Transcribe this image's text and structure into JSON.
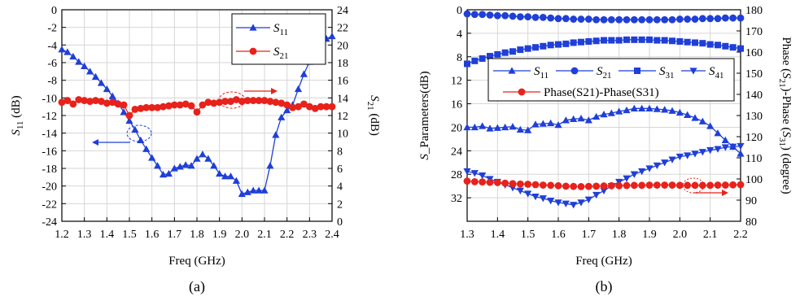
{
  "chart_data": [
    {
      "id": "a",
      "type": "line",
      "panel_label": "(a)",
      "xlabel": "Freq (GHz)",
      "ylabel_left": "S11 (dB)",
      "ylabel_right": "S 21 (dB)",
      "xlim": [
        1.2,
        2.4
      ],
      "ylim_left": [
        -24,
        0
      ],
      "ylim_right": [
        0,
        24
      ],
      "xticks": [
        "1.2",
        "1.3",
        "1.4",
        "1.5",
        "1.6",
        "1.7",
        "1.8",
        "1.9",
        "2.0",
        "2.1",
        "2.2",
        "2.3",
        "2.4"
      ],
      "yticks_left": [
        "0",
        "-2",
        "-4",
        "-6",
        "-8",
        "-10",
        "-12",
        "-14",
        "-16",
        "-18",
        "-20",
        "-22",
        "-24"
      ],
      "yticks_right": [
        "24",
        "22",
        "20",
        "18",
        "16",
        "14",
        "12",
        "10",
        "8",
        "6",
        "4",
        "2",
        "0"
      ],
      "grid": true,
      "legend": "top-right",
      "series": [
        {
          "name": "S11",
          "sub": "11",
          "color": "#1f3fd8",
          "marker": "triangle-up",
          "axis": "left",
          "x": [
            1.2,
            1.225,
            1.25,
            1.275,
            1.3,
            1.325,
            1.35,
            1.375,
            1.4,
            1.425,
            1.45,
            1.475,
            1.5,
            1.525,
            1.55,
            1.575,
            1.6,
            1.625,
            1.65,
            1.675,
            1.7,
            1.725,
            1.75,
            1.775,
            1.8,
            1.825,
            1.85,
            1.875,
            1.9,
            1.925,
            1.95,
            1.975,
            2.0,
            2.025,
            2.05,
            2.075,
            2.1,
            2.125,
            2.15,
            2.175,
            2.2,
            2.225,
            2.25,
            2.275,
            2.3,
            2.325,
            2.35,
            2.375,
            2.4
          ],
          "values": [
            -4.5,
            -4.8,
            -5.3,
            -5.9,
            -6.4,
            -7.0,
            -7.6,
            -8.3,
            -9.0,
            -9.8,
            -10.6,
            -11.6,
            -12.6,
            -13.6,
            -14.8,
            -15.8,
            -16.8,
            -17.7,
            -18.7,
            -18.6,
            -18.0,
            -17.8,
            -17.6,
            -17.7,
            -16.9,
            -16.4,
            -16.9,
            -17.7,
            -18.6,
            -18.9,
            -18.9,
            -19.4,
            -20.9,
            -20.7,
            -20.5,
            -20.5,
            -20.5,
            -17.7,
            -14.2,
            -12.2,
            -11.4,
            -10.8,
            -9.0,
            -7.3,
            -5.9,
            -4.7,
            -3.8,
            -3.3,
            -3.0
          ]
        },
        {
          "name": "S21",
          "sub": "21",
          "color": "#e8211b",
          "marker": "circle",
          "axis": "right",
          "x": [
            1.2,
            1.225,
            1.25,
            1.275,
            1.3,
            1.325,
            1.35,
            1.375,
            1.4,
            1.425,
            1.45,
            1.475,
            1.5,
            1.525,
            1.55,
            1.575,
            1.6,
            1.625,
            1.65,
            1.675,
            1.7,
            1.725,
            1.75,
            1.775,
            1.8,
            1.825,
            1.85,
            1.875,
            1.9,
            1.925,
            1.95,
            1.975,
            2.0,
            2.025,
            2.05,
            2.075,
            2.1,
            2.125,
            2.15,
            2.175,
            2.2,
            2.225,
            2.25,
            2.275,
            2.3,
            2.325,
            2.35,
            2.375,
            2.4
          ],
          "values": [
            13.5,
            13.7,
            13.3,
            13.8,
            13.7,
            13.6,
            13.7,
            13.6,
            13.4,
            13.5,
            13.3,
            13.2,
            12.0,
            12.7,
            12.8,
            12.9,
            12.9,
            12.9,
            13.0,
            13.1,
            13.2,
            13.2,
            13.3,
            13.1,
            12.4,
            13.2,
            13.5,
            13.4,
            13.5,
            13.6,
            13.6,
            13.8,
            13.6,
            13.7,
            13.7,
            13.7,
            13.7,
            13.6,
            13.5,
            13.4,
            13.2,
            12.9,
            13.0,
            13.3,
            13.0,
            12.8,
            13.0,
            13.0,
            13.0
          ]
        }
      ],
      "annotations": [
        {
          "type": "ellipse-arrow",
          "target": "S11",
          "direction": "left"
        },
        {
          "type": "ellipse-arrow",
          "target": "S21",
          "direction": "right"
        }
      ]
    },
    {
      "id": "b",
      "type": "line",
      "panel_label": "(b)",
      "xlabel": "Freq (GHz)",
      "ylabel_left": "S_Parameters(dB)",
      "ylabel_right": "Phase (S21)-Phase (S31) (degree)",
      "xlim": [
        1.3,
        2.2
      ],
      "ylim_left": [
        0,
        36
      ],
      "ylim_left_inverted": true,
      "ylim_right": [
        80,
        180
      ],
      "xticks": [
        "1.3",
        "1.4",
        "1.5",
        "1.6",
        "1.7",
        "1.8",
        "1.9",
        "2.0",
        "2.1",
        "2.2"
      ],
      "yticks_left": [
        "0",
        "4",
        "8",
        "12",
        "16",
        "20",
        "24",
        "28",
        "32"
      ],
      "yticks_right": [
        "180",
        "170",
        "160",
        "150",
        "140",
        "130",
        "120",
        "110",
        "100",
        "90",
        "80"
      ],
      "grid": true,
      "legend": "center",
      "series": [
        {
          "name": "S11",
          "sub": "11",
          "color": "#1f3fd8",
          "marker": "triangle-up",
          "axis": "left",
          "x": [
            1.3,
            1.325,
            1.35,
            1.375,
            1.4,
            1.425,
            1.45,
            1.475,
            1.5,
            1.525,
            1.55,
            1.575,
            1.6,
            1.625,
            1.65,
            1.675,
            1.7,
            1.725,
            1.75,
            1.775,
            1.8,
            1.825,
            1.85,
            1.875,
            1.9,
            1.925,
            1.95,
            1.975,
            2.0,
            2.025,
            2.05,
            2.075,
            2.1,
            2.125,
            2.15,
            2.175,
            2.2
          ],
          "values": [
            20.0,
            20.0,
            19.8,
            20.2,
            20.1,
            20.0,
            19.9,
            20.4,
            20.5,
            19.5,
            19.4,
            19.3,
            19.6,
            18.8,
            18.6,
            18.5,
            18.8,
            18.2,
            17.8,
            17.6,
            17.3,
            17.1,
            16.8,
            16.8,
            16.8,
            16.9,
            17.0,
            17.2,
            17.5,
            17.9,
            18.4,
            19.0,
            19.8,
            21.0,
            22.2,
            23.3,
            24.5
          ]
        },
        {
          "name": "S21",
          "sub": "21",
          "color": "#1f3fd8",
          "marker": "circle",
          "axis": "left",
          "x": [
            1.3,
            1.325,
            1.35,
            1.375,
            1.4,
            1.425,
            1.45,
            1.475,
            1.5,
            1.525,
            1.55,
            1.575,
            1.6,
            1.625,
            1.65,
            1.675,
            1.7,
            1.725,
            1.75,
            1.775,
            1.8,
            1.825,
            1.85,
            1.875,
            1.9,
            1.925,
            1.95,
            1.975,
            2.0,
            2.025,
            2.05,
            2.075,
            2.1,
            2.125,
            2.15,
            2.175,
            2.2
          ],
          "values": [
            0.7,
            0.8,
            0.8,
            0.9,
            1.0,
            1.0,
            1.1,
            1.2,
            1.2,
            1.3,
            1.3,
            1.4,
            1.5,
            1.5,
            1.6,
            1.6,
            1.6,
            1.7,
            1.7,
            1.7,
            1.7,
            1.7,
            1.7,
            1.7,
            1.7,
            1.7,
            1.7,
            1.7,
            1.6,
            1.6,
            1.6,
            1.5,
            1.5,
            1.5,
            1.4,
            1.4,
            1.4
          ]
        },
        {
          "name": "S31",
          "sub": "31",
          "color": "#1f3fd8",
          "marker": "square",
          "axis": "left",
          "x": [
            1.3,
            1.325,
            1.35,
            1.375,
            1.4,
            1.425,
            1.45,
            1.475,
            1.5,
            1.525,
            1.55,
            1.575,
            1.6,
            1.625,
            1.65,
            1.675,
            1.7,
            1.725,
            1.75,
            1.775,
            1.8,
            1.825,
            1.85,
            1.875,
            1.9,
            1.925,
            1.95,
            1.975,
            2.0,
            2.025,
            2.05,
            2.075,
            2.1,
            2.125,
            2.15,
            2.175,
            2.2
          ],
          "values": [
            9.2,
            8.7,
            8.3,
            7.9,
            7.6,
            7.3,
            7.1,
            6.8,
            6.6,
            6.4,
            6.2,
            6.0,
            5.9,
            5.8,
            5.6,
            5.5,
            5.4,
            5.3,
            5.2,
            5.2,
            5.2,
            5.1,
            5.1,
            5.1,
            5.1,
            5.2,
            5.2,
            5.3,
            5.4,
            5.5,
            5.6,
            5.7,
            5.9,
            6.0,
            6.2,
            6.4,
            6.6
          ]
        },
        {
          "name": "S41",
          "sub": "41",
          "color": "#1f3fd8",
          "marker": "triangle-down",
          "axis": "left",
          "x": [
            1.3,
            1.325,
            1.35,
            1.375,
            1.4,
            1.425,
            1.45,
            1.475,
            1.5,
            1.525,
            1.55,
            1.575,
            1.6,
            1.625,
            1.65,
            1.675,
            1.7,
            1.725,
            1.75,
            1.775,
            1.8,
            1.825,
            1.85,
            1.875,
            1.9,
            1.925,
            1.95,
            1.975,
            2.0,
            2.025,
            2.05,
            2.075,
            2.1,
            2.125,
            2.15,
            2.175,
            2.2
          ],
          "values": [
            27.5,
            27.8,
            28.2,
            28.8,
            29.3,
            29.8,
            30.3,
            30.8,
            31.3,
            31.8,
            32.1,
            32.5,
            32.8,
            33.0,
            33.2,
            32.8,
            32.3,
            31.5,
            30.8,
            30.0,
            29.3,
            28.7,
            28.0,
            27.5,
            27.0,
            26.5,
            26.0,
            25.5,
            25.0,
            24.8,
            24.5,
            24.2,
            23.9,
            23.7,
            23.4,
            23.3,
            23.2
          ]
        },
        {
          "name": "Phase(S21)-Phase(S31)",
          "color": "#e8211b",
          "marker": "circle",
          "axis": "right",
          "x": [
            1.3,
            1.325,
            1.35,
            1.375,
            1.4,
            1.425,
            1.45,
            1.475,
            1.5,
            1.525,
            1.55,
            1.575,
            1.6,
            1.625,
            1.65,
            1.675,
            1.7,
            1.725,
            1.75,
            1.775,
            1.8,
            1.825,
            1.85,
            1.875,
            1.9,
            1.925,
            1.95,
            1.975,
            2.0,
            2.025,
            2.05,
            2.075,
            2.1,
            2.125,
            2.15,
            2.175,
            2.2
          ],
          "values": [
            99.0,
            98.7,
            98.6,
            98.4,
            98.3,
            98.0,
            97.8,
            97.6,
            97.5,
            97.3,
            97.1,
            97.0,
            96.8,
            96.6,
            96.5,
            96.4,
            96.5,
            96.6,
            96.7,
            96.8,
            96.8,
            96.9,
            97.0,
            97.0,
            97.1,
            97.1,
            97.1,
            97.1,
            97.0,
            97.0,
            97.0,
            97.0,
            97.0,
            97.1,
            97.1,
            97.2,
            97.3
          ]
        }
      ],
      "annotations": [
        {
          "type": "ellipse-arrow",
          "target": "Phase(S21)-Phase(S31)",
          "direction": "right"
        }
      ]
    }
  ]
}
